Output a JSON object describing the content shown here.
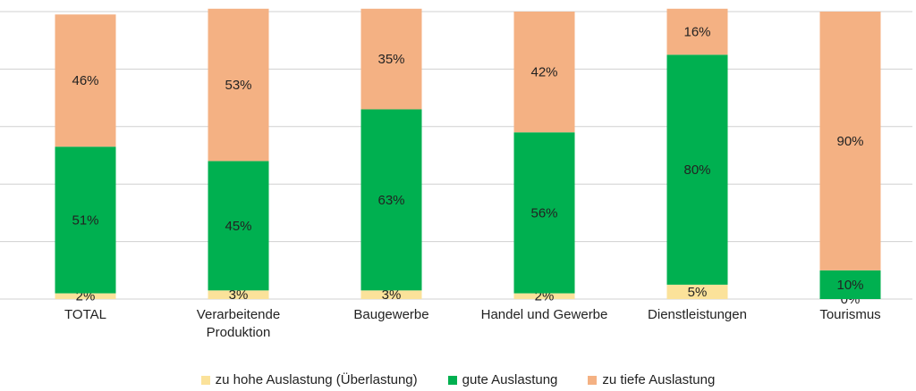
{
  "chart_data": {
    "type": "stacked-bar",
    "categories": [
      "TOTAL",
      "Verarbeitende Produktion",
      "Baugewerbe",
      "Handel und Gewerbe",
      "Dienstleistungen",
      "Tourismus"
    ],
    "series": [
      {
        "name": "zu hohe Auslastung (Überlastung)",
        "color": "#fbe29a",
        "values": [
          2,
          3,
          3,
          2,
          5,
          0
        ],
        "value_labels": [
          "2%",
          "3%",
          "3%",
          "2%",
          "5%",
          "0%"
        ]
      },
      {
        "name": "gute Auslastung",
        "color": "#00b050",
        "values": [
          51,
          45,
          63,
          56,
          80,
          10
        ],
        "value_labels": [
          "51%",
          "45%",
          "63%",
          "56%",
          "80%",
          "10%"
        ]
      },
      {
        "name": "zu tiefe Auslastung",
        "color": "#f4b183",
        "values": [
          46,
          53,
          35,
          42,
          16,
          90
        ],
        "value_labels": [
          "46%",
          "53%",
          "35%",
          "42%",
          "16%",
          "90%"
        ]
      }
    ],
    "ylim": [
      0,
      100
    ],
    "yticks": [
      0,
      20,
      40,
      60,
      80,
      100
    ],
    "grid": true
  }
}
